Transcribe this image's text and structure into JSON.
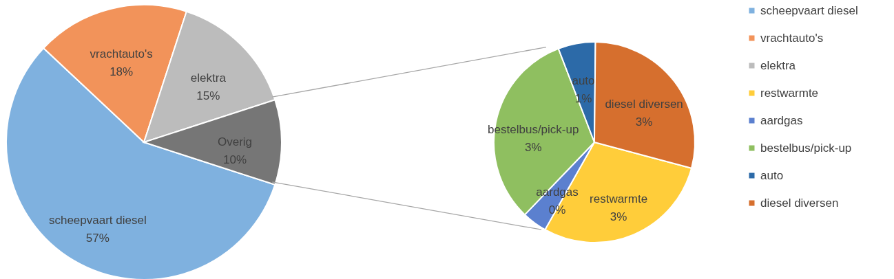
{
  "chart_data": [
    {
      "type": "pie",
      "categories": [
        "scheepvaart diesel",
        "vrachtauto's",
        "elektra",
        "Overig"
      ],
      "values": [
        57,
        18,
        15,
        10
      ],
      "value_labels": [
        "57%",
        "18%",
        "15%",
        "10%"
      ],
      "colors": [
        "#7fb1df",
        "#f2935a",
        "#bcbcbc",
        "#767676"
      ],
      "legend": "right"
    },
    {
      "type": "pie",
      "categories": [
        "restwarmte",
        "aardgas",
        "bestelbus/pick-up",
        "auto",
        "diesel diversen"
      ],
      "values": [
        2.9,
        0.4,
        3.2,
        0.6,
        2.9
      ],
      "value_labels": [
        "3%",
        "0%",
        "3%",
        "1%",
        "3%"
      ],
      "colors": [
        "#ffcd3a",
        "#5b80cf",
        "#8fbf60",
        "#2c6aa8",
        "#d66f2e"
      ],
      "legend": "right"
    }
  ]
}
